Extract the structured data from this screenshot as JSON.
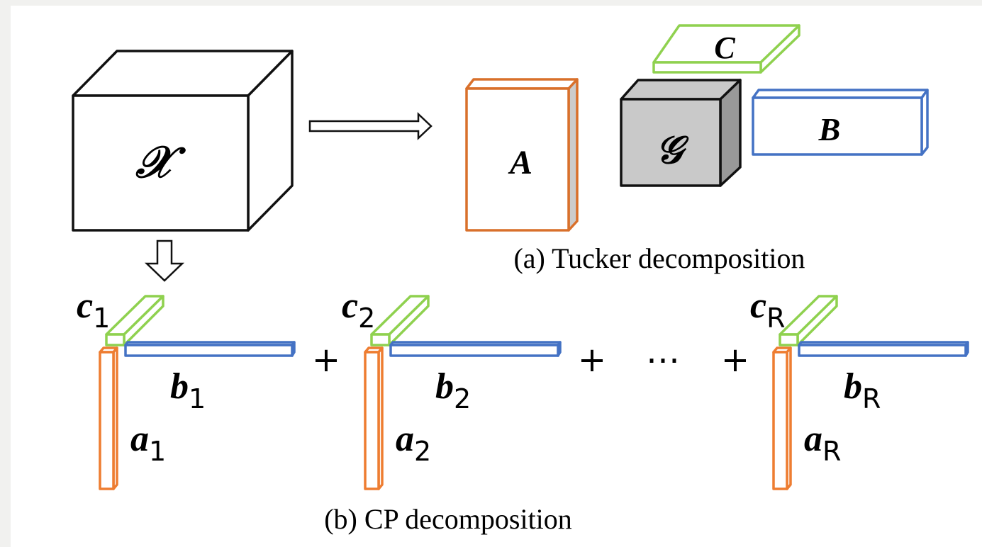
{
  "tensor_label": "𝒳",
  "tucker": {
    "factor_a": "A",
    "core": "𝒢",
    "factor_b": "B",
    "factor_c": "C",
    "caption": "(a) Tucker decomposition"
  },
  "cp": {
    "components": [
      {
        "c": {
          "base": "c",
          "sub": "1"
        },
        "b": {
          "base": "b",
          "sub": "1"
        },
        "a": {
          "base": "a",
          "sub": "1"
        }
      },
      {
        "c": {
          "base": "c",
          "sub": "2"
        },
        "b": {
          "base": "b",
          "sub": "2"
        },
        "a": {
          "base": "a",
          "sub": "2"
        }
      },
      {
        "c": {
          "base": "c",
          "sub": "R"
        },
        "b": {
          "base": "b",
          "sub": "R"
        },
        "a": {
          "base": "a",
          "sub": "R"
        }
      }
    ],
    "operators": [
      "+",
      "+",
      "⋯",
      "+"
    ],
    "caption": "(b) CP decomposition"
  }
}
